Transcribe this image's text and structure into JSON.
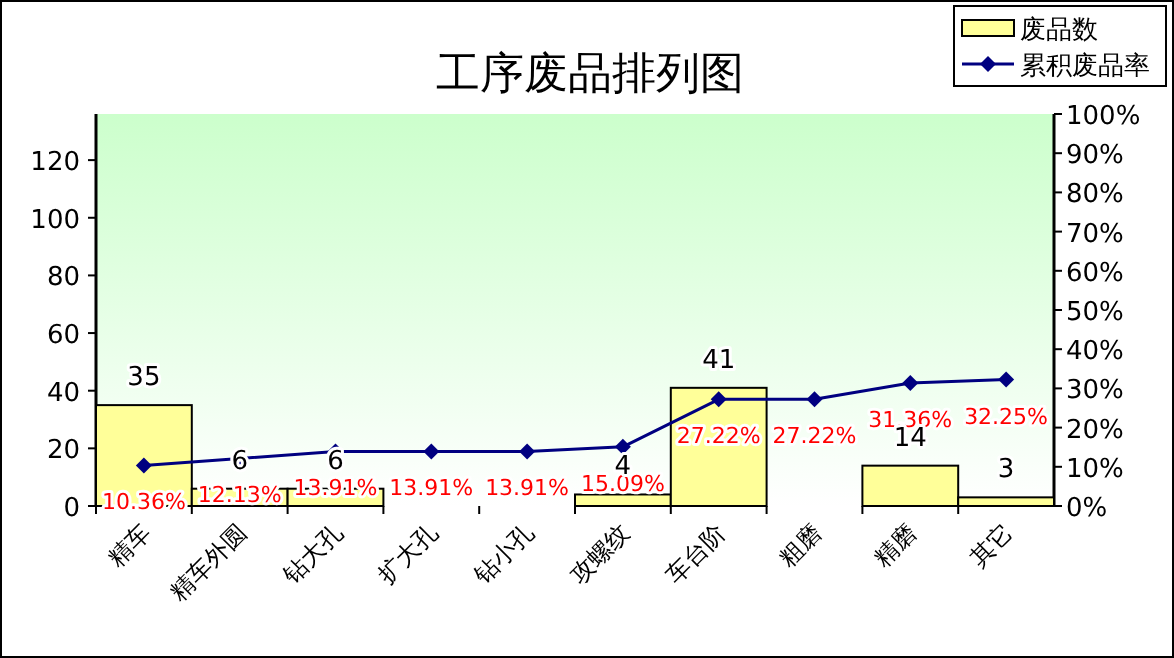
{
  "chart_data": {
    "type": "bar",
    "title": "工序废品排列图",
    "categories": [
      "精车",
      "精车外圆",
      "钻大孔",
      "扩大孔",
      "钻小孔",
      "攻螺纹",
      "车台阶",
      "粗磨",
      "精磨",
      "其它"
    ],
    "series": [
      {
        "name": "废品数",
        "color": "#ffff99",
        "values": [
          35,
          6,
          6,
          0,
          0,
          4,
          41,
          0,
          14,
          3
        ],
        "value_labels": [
          "35",
          "6",
          "6",
          null,
          null,
          "4",
          "41",
          null,
          "14",
          "3"
        ]
      },
      {
        "name": "累积废品率",
        "type": "line",
        "axis": "y2",
        "color": "#000080",
        "values": [
          10.36,
          12.13,
          13.91,
          13.91,
          13.91,
          15.09,
          27.22,
          27.22,
          31.36,
          32.25
        ],
        "value_labels": [
          "10.36%",
          "12.13%",
          "13.91%",
          "13.91%",
          "13.91%",
          "15.09%",
          "27.22%",
          "27.22%",
          "31.36%",
          "32.25%"
        ]
      }
    ],
    "ylim": [
      0,
      136
    ],
    "yticks": [
      0,
      20,
      40,
      60,
      80,
      100,
      120
    ],
    "y2lim": [
      0,
      100
    ],
    "y2ticks": [
      {
        "value": 0,
        "label": "0%"
      },
      {
        "value": 10,
        "label": "10%"
      },
      {
        "value": 20,
        "label": "20%"
      },
      {
        "value": 30,
        "label": "30%"
      },
      {
        "value": 40,
        "label": "40%"
      },
      {
        "value": 50,
        "label": "50%"
      },
      {
        "value": 60,
        "label": "60%"
      },
      {
        "value": 70,
        "label": "70%"
      },
      {
        "value": 80,
        "label": "80%"
      },
      {
        "value": 90,
        "label": "90%"
      },
      {
        "value": 100,
        "label": "100%"
      }
    ],
    "legend": "top right",
    "marker": "diamond",
    "grid": false
  }
}
